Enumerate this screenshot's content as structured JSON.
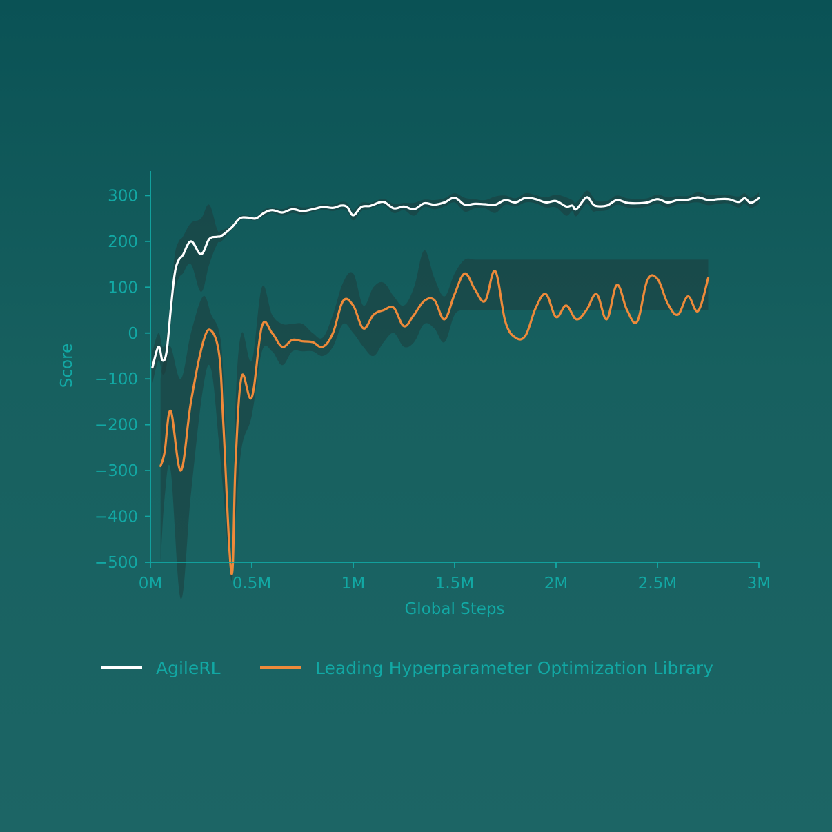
{
  "chart_data": {
    "type": "line",
    "xlabel": "Global Steps",
    "ylabel": "Score",
    "xlim": [
      0,
      3000000
    ],
    "ylim": [
      -500,
      350
    ],
    "x_ticks": [
      0,
      500000,
      1000000,
      1500000,
      2000000,
      2500000,
      3000000
    ],
    "x_tick_labels": [
      "0M",
      "0.5M",
      "1M",
      "1.5M",
      "2M",
      "2.5M",
      "3M"
    ],
    "y_ticks": [
      -500,
      -400,
      -300,
      -200,
      -100,
      0,
      100,
      200,
      300
    ],
    "y_tick_labels": [
      "−500",
      "−400",
      "−300",
      "−200",
      "−100",
      "0",
      "100",
      "200",
      "300"
    ],
    "grid": false,
    "legend_position": "bottom",
    "colors": {
      "axis": "#12a8a4",
      "band": "#1e3c3c",
      "agilerl": "#ffffff",
      "leading": "#ee8a3a"
    },
    "series": [
      {
        "name": "AgileRL",
        "color": "#ffffff",
        "x": [
          10000,
          40000,
          60000,
          80000,
          100000,
          120000,
          140000,
          160000,
          200000,
          250000,
          290000,
          330000,
          350000,
          400000,
          440000,
          480000,
          520000,
          560000,
          600000,
          650000,
          700000,
          750000,
          800000,
          850000,
          900000,
          940000,
          970000,
          1000000,
          1040000,
          1080000,
          1100000,
          1150000,
          1200000,
          1250000,
          1300000,
          1350000,
          1400000,
          1450000,
          1500000,
          1550000,
          1600000,
          1650000,
          1700000,
          1750000,
          1800000,
          1850000,
          1900000,
          1950000,
          2000000,
          2050000,
          2080000,
          2100000,
          2150000,
          2180000,
          2200000,
          2250000,
          2300000,
          2350000,
          2400000,
          2450000,
          2500000,
          2550000,
          2600000,
          2650000,
          2700000,
          2750000,
          2800000,
          2850000,
          2900000,
          2930000,
          2960000,
          3000000
        ],
        "y": [
          -75,
          -30,
          -60,
          -40,
          50,
          130,
          160,
          170,
          200,
          172,
          205,
          210,
          212,
          230,
          250,
          252,
          250,
          262,
          268,
          263,
          270,
          266,
          270,
          275,
          273,
          278,
          275,
          257,
          275,
          277,
          280,
          286,
          272,
          276,
          270,
          283,
          280,
          285,
          295,
          280,
          282,
          281,
          280,
          290,
          285,
          295,
          292,
          285,
          288,
          276,
          278,
          270,
          296,
          282,
          277,
          278,
          290,
          284,
          283,
          285,
          292,
          285,
          290,
          291,
          296,
          290,
          292,
          292,
          286,
          294,
          284,
          294
        ]
      },
      {
        "name": "Leading Hyperparameter Optimization Library",
        "color": "#ee8a3a",
        "x": [
          50000,
          70000,
          100000,
          150000,
          200000,
          260000,
          300000,
          340000,
          360000,
          400000,
          420000,
          450000,
          500000,
          550000,
          600000,
          650000,
          700000,
          750000,
          800000,
          850000,
          900000,
          950000,
          1000000,
          1050000,
          1100000,
          1150000,
          1200000,
          1250000,
          1300000,
          1350000,
          1400000,
          1450000,
          1500000,
          1550000,
          1600000,
          1650000,
          1700000,
          1750000,
          1800000,
          1850000,
          1900000,
          1950000,
          2000000,
          2050000,
          2100000,
          2150000,
          2200000,
          2250000,
          2300000,
          2350000,
          2400000,
          2450000,
          2500000,
          2550000,
          2600000,
          2650000,
          2700000,
          2750000
        ],
        "y": [
          -290,
          -260,
          -170,
          -300,
          -150,
          -20,
          5,
          -50,
          -200,
          -525,
          -280,
          -95,
          -140,
          15,
          0,
          -30,
          -15,
          -18,
          -20,
          -30,
          0,
          70,
          60,
          10,
          40,
          50,
          55,
          15,
          40,
          70,
          72,
          30,
          85,
          130,
          95,
          70,
          135,
          25,
          -10,
          -5,
          55,
          85,
          35,
          60,
          30,
          50,
          85,
          30,
          105,
          50,
          25,
          115,
          118,
          65,
          40,
          80,
          48,
          120
        ]
      }
    ],
    "bands": [
      {
        "name": "AgileRL",
        "x": [
          10000,
          40000,
          60000,
          80000,
          100000,
          120000,
          140000,
          160000,
          200000,
          250000,
          290000,
          330000,
          350000,
          400000,
          440000,
          480000,
          520000,
          560000,
          600000,
          650000,
          700000,
          750000,
          800000,
          850000,
          900000,
          940000,
          970000,
          1000000,
          1040000,
          1080000,
          1100000,
          1150000,
          1200000,
          1250000,
          1300000,
          1350000,
          1400000,
          1450000,
          1500000,
          1550000,
          1600000,
          1650000,
          1700000,
          1750000,
          1800000,
          1850000,
          1900000,
          1950000,
          2000000,
          2050000,
          2080000,
          2100000,
          2150000,
          2180000,
          2200000,
          2250000,
          2300000,
          2350000,
          2400000,
          2450000,
          2500000,
          2550000,
          2600000,
          2650000,
          2700000,
          2750000,
          2800000,
          2850000,
          2900000,
          2930000,
          2960000,
          3000000
        ],
        "lower": [
          -110,
          -60,
          -90,
          -70,
          20,
          90,
          120,
          130,
          150,
          90,
          150,
          195,
          200,
          225,
          245,
          248,
          246,
          255,
          262,
          256,
          262,
          258,
          264,
          269,
          266,
          270,
          266,
          246,
          266,
          270,
          274,
          279,
          262,
          268,
          256,
          275,
          270,
          276,
          285,
          265,
          272,
          272,
          262,
          280,
          276,
          285,
          283,
          274,
          274,
          256,
          266,
          255,
          282,
          266,
          266,
          268,
          280,
          274,
          273,
          276,
          282,
          274,
          281,
          283,
          285,
          279,
          282,
          283,
          274,
          283,
          273,
          282
        ],
        "upper": [
          -40,
          0,
          -30,
          -10,
          80,
          170,
          200,
          210,
          240,
          250,
          280,
          225,
          224,
          235,
          255,
          256,
          254,
          269,
          274,
          270,
          278,
          274,
          276,
          281,
          280,
          286,
          284,
          268,
          284,
          284,
          286,
          293,
          282,
          284,
          284,
          291,
          290,
          294,
          305,
          295,
          292,
          290,
          298,
          300,
          294,
          305,
          301,
          296,
          302,
          296,
          290,
          285,
          310,
          298,
          288,
          288,
          300,
          294,
          293,
          294,
          302,
          296,
          299,
          299,
          307,
          301,
          302,
          301,
          298,
          305,
          295,
          306
        ]
      },
      {
        "name": "Leading Hyperparameter Optimization Library",
        "x": [
          50000,
          70000,
          100000,
          150000,
          200000,
          260000,
          300000,
          340000,
          360000,
          400000,
          420000,
          450000,
          500000,
          550000,
          600000,
          650000,
          700000,
          750000,
          800000,
          850000,
          900000,
          950000,
          1000000,
          1050000,
          1100000,
          1150000,
          1200000,
          1250000,
          1300000,
          1350000,
          1400000,
          1450000,
          1500000,
          1550000,
          1600000,
          1650000,
          1700000,
          1750000,
          1800000,
          1850000,
          1900000,
          1950000,
          2000000,
          2050000,
          2100000,
          2150000,
          2200000,
          2250000,
          2300000,
          2350000,
          2400000,
          2450000,
          2500000,
          2550000,
          2600000,
          2650000,
          2700000,
          2750000
        ],
        "lower": [
          -500,
          -360,
          -300,
          -580,
          -350,
          -120,
          -80,
          -250,
          -350,
          -540,
          -400,
          -250,
          -180,
          -40,
          -40,
          -70,
          -40,
          -40,
          -40,
          -50,
          -30,
          20,
          0,
          -30,
          -50,
          -20,
          0,
          -30,
          -20,
          20,
          10,
          -20,
          40,
          50,
          50,
          50,
          50,
          50,
          50,
          50,
          50,
          50,
          50,
          50,
          50,
          50,
          50,
          50,
          50,
          50,
          50,
          50,
          50,
          50,
          50,
          50,
          50,
          50
        ],
        "upper": [
          -100,
          -50,
          -30,
          -100,
          0,
          80,
          40,
          0,
          -100,
          -500,
          -150,
          0,
          -60,
          100,
          40,
          20,
          20,
          20,
          0,
          -10,
          40,
          110,
          130,
          60,
          100,
          110,
          80,
          60,
          100,
          180,
          120,
          80,
          130,
          160,
          160,
          160,
          160,
          160,
          160,
          160,
          160,
          160,
          160,
          160,
          160,
          160,
          160,
          160,
          160,
          160,
          160,
          160,
          160,
          160,
          160,
          160,
          160,
          160
        ]
      }
    ]
  }
}
